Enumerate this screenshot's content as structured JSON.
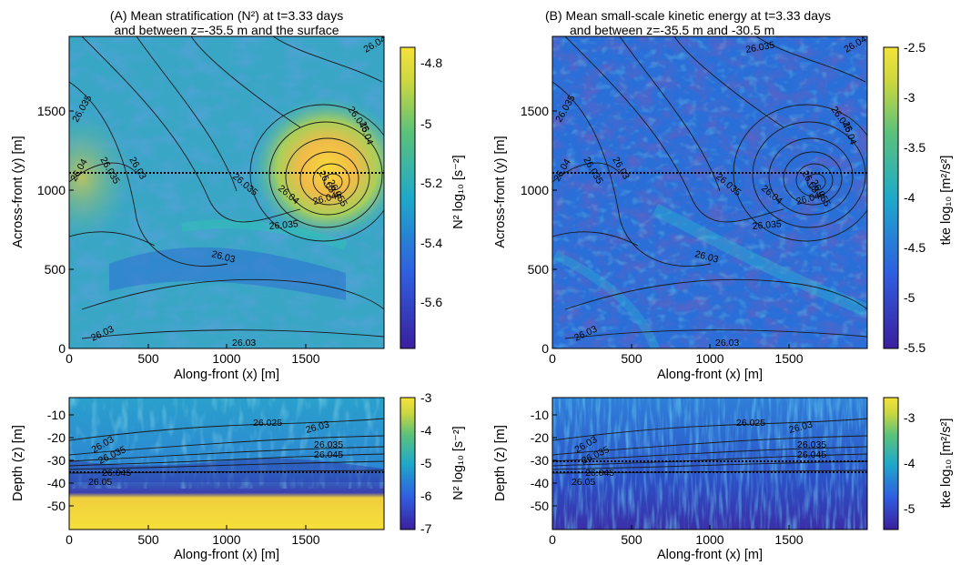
{
  "panels": [
    {
      "id": "A-top",
      "title_lines": [
        "(A) Mean stratification (N²) at t=3.33 days",
        "and between z=-35.5 m and the surface"
      ],
      "xlabel": "Along-front (x) [m]",
      "ylabel": "Across-front (y) [m]",
      "xticks": [
        "0",
        "500",
        "1000",
        "1500"
      ],
      "yticks": [
        "0",
        "500",
        "1000",
        "1500"
      ],
      "cbar_label": "N² log₁₀ [s⁻²]",
      "cbar_ticks": [
        "-4.8",
        "-5",
        "-5.2",
        "-5.4",
        "-5.6"
      ],
      "contour_labels": [
        "26.035",
        "26.04",
        "26.035",
        "26.04",
        "26.045",
        "26.04",
        "26.035",
        "26.03",
        "26.035",
        "26.04",
        "26.035",
        "26.03",
        "26.03",
        "26.03",
        "26.05",
        "26.055",
        "26.045"
      ]
    },
    {
      "id": "B-top",
      "title_lines": [
        "(B) Mean small-scale kinetic energy at t=3.33 days",
        "and between z=-35.5 m and -30.5 m"
      ],
      "xlabel": "Along-front (x) [m]",
      "ylabel": "Across-front (y) [m]",
      "xticks": [
        "0",
        "500",
        "1000",
        "1500"
      ],
      "yticks": [
        "0",
        "500",
        "1000",
        "1500"
      ],
      "cbar_label": "tke log₁₀ [m²/s²]",
      "cbar_ticks": [
        "-2.5",
        "-3",
        "-3.5",
        "-4",
        "-4.5",
        "-5",
        "-5.5"
      ],
      "contour_labels": [
        "26.035",
        "26.04",
        "26.035",
        "26.04",
        "26.045",
        "26.04",
        "26.035",
        "26.03",
        "26.035",
        "26.04",
        "26.035",
        "26.03",
        "26.03",
        "26.03",
        "26.05",
        "26.055",
        "26.045"
      ]
    },
    {
      "id": "A-bottom",
      "xlabel": "Along-front (x) [m]",
      "ylabel": "Depth (z) [m]",
      "xticks": [
        "0",
        "500",
        "1000",
        "1500"
      ],
      "yticks": [
        "-10",
        "-20",
        "-30",
        "-40",
        "-50"
      ],
      "cbar_label": "N² log₁₀ [s⁻²]",
      "cbar_ticks": [
        "-3",
        "-4",
        "-5",
        "-6",
        "-7"
      ],
      "contour_labels": [
        "26.025",
        "26.03",
        "26.035",
        "26.045",
        "26.03",
        "26.035",
        "26.045",
        "26.05"
      ]
    },
    {
      "id": "B-bottom",
      "xlabel": "Along-front (x) [m]",
      "ylabel": "Depth (z) [m]",
      "xticks": [
        "0",
        "500",
        "1000",
        "1500"
      ],
      "yticks": [
        "-10",
        "-20",
        "-30",
        "-40",
        "-50"
      ],
      "cbar_label": "tke log₁₀ [m²/s²]",
      "cbar_ticks": [
        "-3",
        "-4",
        "-5"
      ],
      "contour_labels": [
        "26.025",
        "26.03",
        "26.035",
        "26.045",
        "26.03",
        "26.035",
        "26.045",
        "26.05"
      ]
    }
  ],
  "colors": {
    "low": "#3b1f9e",
    "mid": "#1ea9c9",
    "high": "#f5e33a",
    "line": "#1a1a1a"
  },
  "chart_data": [
    {
      "type": "heatmap",
      "panel": "A",
      "title": "(A) Mean stratification (N²) at t=3.33 days and between z=-35.5 m and the surface",
      "xlabel": "Along-front (x) [m]",
      "ylabel": "Across-front (y) [m]",
      "xlim": [
        0,
        2000
      ],
      "ylim": [
        0,
        1950
      ],
      "colorbar": {
        "label": "N² log₁₀ [s⁻²]",
        "range": [
          -5.75,
          -4.7
        ]
      },
      "features": [
        {
          "name": "eddy maximum",
          "x": 1620,
          "y": 1150,
          "value": -4.8
        },
        {
          "name": "section line",
          "y": 1140
        }
      ]
    },
    {
      "type": "heatmap",
      "panel": "B",
      "title": "(B) Mean small-scale kinetic energy at t=3.33 days and between z=-35.5 m and -30.5 m",
      "xlabel": "Along-front (x) [m]",
      "ylabel": "Across-front (y) [m]",
      "xlim": [
        0,
        2000
      ],
      "ylim": [
        0,
        1950
      ],
      "colorbar": {
        "label": "tke log₁₀ [m²/s²]",
        "range": [
          -5.5,
          -2.5
        ]
      },
      "features": [
        {
          "name": "section line",
          "y": 1140
        }
      ]
    },
    {
      "type": "heatmap",
      "panel": "A-depth",
      "xlabel": "Along-front (x) [m]",
      "ylabel": "Depth (z) [m]",
      "xlim": [
        0,
        2000
      ],
      "ylim": [
        -60,
        -2
      ],
      "colorbar": {
        "label": "N² log₁₀ [s⁻²]",
        "range": [
          -7,
          -3
        ]
      },
      "features": [
        {
          "name": "depth line",
          "z": -35.5
        }
      ]
    },
    {
      "type": "heatmap",
      "panel": "B-depth",
      "xlabel": "Along-front (x) [m]",
      "ylabel": "Depth (z) [m]",
      "xlim": [
        0,
        2000
      ],
      "ylim": [
        -60,
        -2
      ],
      "colorbar": {
        "label": "tke log₁₀ [m²/s²]",
        "range": [
          -5.5,
          -2.5
        ]
      },
      "features": [
        {
          "name": "depth line",
          "z": -30.5
        },
        {
          "name": "depth line",
          "z": -35.5
        }
      ]
    }
  ]
}
